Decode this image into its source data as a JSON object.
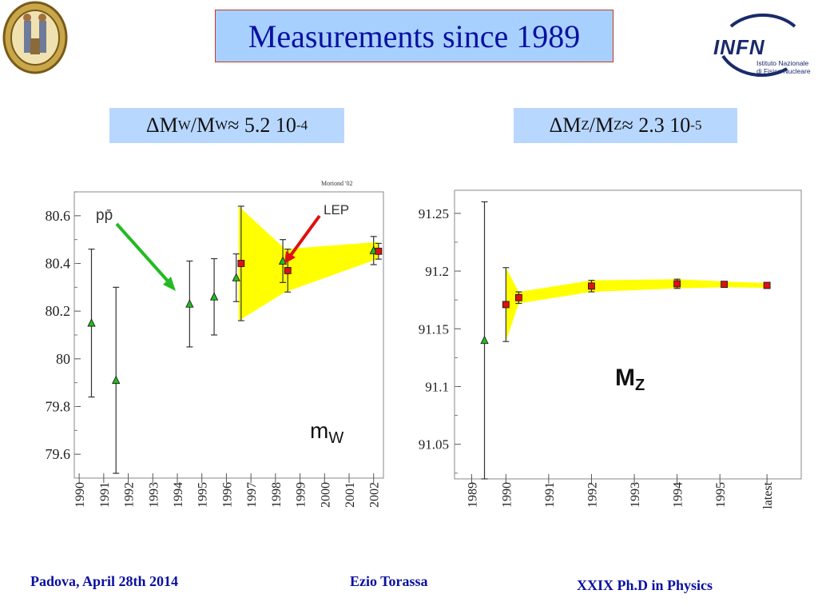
{
  "title": "Measurements since 1989",
  "formula_w": {
    "delta": "ΔM",
    "sub1": "W",
    "slash": "/M",
    "sub2": "W",
    "approx": " ≈ 5.2 10",
    "exp": "-4"
  },
  "formula_z": {
    "delta": "ΔM",
    "sub1": "Z",
    "slash": "/M",
    "sub2": "Z",
    "approx": " ≈ 2.3 10",
    "exp": "-5"
  },
  "footer": {
    "left": "Padova, April 28th 2014",
    "center": "Ezio Torassa",
    "right": "XXIX  Ph.D in Physics"
  },
  "logos": {
    "infn_text": "INFN",
    "infn_line1": "Istituto Nazionale",
    "infn_line2": "di Fisica Nucleare",
    "seal_icon": "university-seal"
  },
  "colors": {
    "band": "#ffff00",
    "ppbar_marker": "#22bb22",
    "lep_marker": "#dd1111",
    "title_bg": "#a8d0ff",
    "text_blue": "#0a10a0"
  },
  "chart_data": [
    {
      "type": "scatter",
      "note": "Moriond '02",
      "label": "m",
      "label_sub": "W",
      "ylim": [
        79.5,
        80.7
      ],
      "yticks": [
        "79.6",
        "79.8",
        "80",
        "80.2",
        "80.4",
        "80.6"
      ],
      "ytick_values": [
        79.6,
        79.8,
        80.0,
        80.2,
        80.4,
        80.6
      ],
      "xlim": [
        1989.8,
        2002.4
      ],
      "xticks": [
        "1990",
        "1991",
        "1992",
        "1993",
        "1994",
        "1995",
        "1996",
        "1997",
        "1998",
        "1999",
        "2000",
        "2001",
        "2002"
      ],
      "xtick_values": [
        1990,
        1991,
        1992,
        1993,
        1994,
        1995,
        1996,
        1997,
        1998,
        1999,
        2000,
        2001,
        2002
      ],
      "annotations": [
        {
          "text": "pp̄",
          "color": "#22bb22"
        },
        {
          "text": "LEP",
          "color": "#dd1111"
        }
      ],
      "series": [
        {
          "marker": "triangle",
          "points": [
            {
              "x": 1990.5,
              "y": 80.15,
              "err": 0.31
            },
            {
              "x": 1991.5,
              "y": 79.91,
              "err": 0.39
            },
            {
              "x": 1994.5,
              "y": 80.23,
              "err": 0.18
            },
            {
              "x": 1995.5,
              "y": 80.26,
              "err": 0.16
            },
            {
              "x": 1996.4,
              "y": 80.34,
              "err": 0.1
            },
            {
              "x": 1998.3,
              "y": 80.41,
              "err": 0.09
            },
            {
              "x": 2002.0,
              "y": 80.454,
              "err": 0.059
            }
          ]
        },
        {
          "marker": "square",
          "points": [
            {
              "x": 1996.6,
              "y": 80.4,
              "err": 0.24
            },
            {
              "x": 1998.5,
              "y": 80.37,
              "err": 0.09
            },
            {
              "x": 2002.2,
              "y": 80.451,
              "err": 0.033
            }
          ]
        }
      ],
      "band": {
        "x": [
          1996.5,
          1998.4,
          2002.2
        ],
        "upper": [
          80.64,
          80.46,
          80.49
        ],
        "lower": [
          80.16,
          80.28,
          80.42
        ]
      }
    },
    {
      "type": "scatter",
      "label": "M",
      "label_sub": "Z",
      "ylim": [
        91.02,
        91.27
      ],
      "yticks": [
        "91.05",
        "91.1",
        "91.15",
        "91.2",
        "91.25"
      ],
      "ytick_values": [
        91.05,
        91.1,
        91.15,
        91.2,
        91.25
      ],
      "xlim": [
        1988.8,
        1996.9
      ],
      "xticks": [
        "1989",
        "1990",
        "1991",
        "1992",
        "1993",
        "1994",
        "1995",
        "latest"
      ],
      "xtick_values": [
        1989.2,
        1990.0,
        1991.0,
        1992.0,
        1993.0,
        1994.0,
        1995.0,
        1996.1
      ],
      "series": [
        {
          "marker": "triangle",
          "points": [
            {
              "x": 1989.5,
              "y": 91.14,
              "err": 0.12
            }
          ]
        },
        {
          "marker": "square",
          "points": [
            {
              "x": 1990.0,
              "y": 91.171,
              "err": 0.032
            },
            {
              "x": 1990.3,
              "y": 91.177,
              "err": 0.005
            },
            {
              "x": 1992.0,
              "y": 91.187,
              "err": 0.005
            },
            {
              "x": 1994.0,
              "y": 91.189,
              "err": 0.004
            },
            {
              "x": 1995.1,
              "y": 91.1885,
              "err": 0.0025
            },
            {
              "x": 1996.1,
              "y": 91.1876,
              "err": 0.0021
            }
          ]
        }
      ],
      "band": {
        "x": [
          1990.0,
          1990.3,
          1992.0,
          1994.0,
          1995.1,
          1996.1
        ],
        "upper": [
          91.203,
          91.182,
          91.192,
          91.193,
          91.191,
          91.1897
        ],
        "lower": [
          91.139,
          91.172,
          91.182,
          91.185,
          91.186,
          91.1855
        ]
      }
    }
  ]
}
